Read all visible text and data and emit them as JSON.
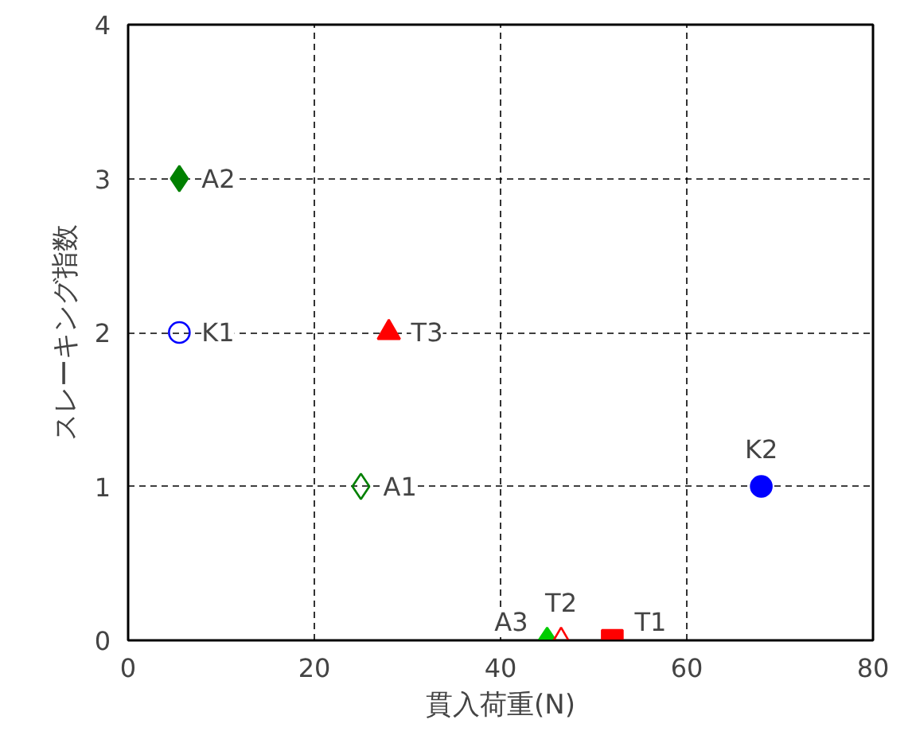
{
  "chart_data": {
    "type": "scatter",
    "xlabel": "貫入荷重(N)",
    "ylabel": "スレーキング指数",
    "xlim": [
      0,
      80
    ],
    "ylim": [
      0,
      4
    ],
    "xticks": [
      0,
      20,
      40,
      60,
      80
    ],
    "yticks": [
      0,
      1,
      2,
      3,
      4
    ],
    "grid": true,
    "legend": false,
    "series": [
      {
        "name": "A2",
        "color": "#008000",
        "marker": "diamond",
        "x": [
          5.5
        ],
        "values": [
          3
        ]
      },
      {
        "name": "K1",
        "color": "#0000ff",
        "marker": "circle",
        "x": [
          5.5
        ],
        "values": [
          2
        ]
      },
      {
        "name": "T3",
        "color": "#ff0000",
        "marker": "triangle",
        "x": [
          28
        ],
        "values": [
          2
        ]
      },
      {
        "name": "A1",
        "color": "#008000",
        "marker": "diamond",
        "x": [
          25
        ],
        "values": [
          1
        ]
      },
      {
        "name": "K2",
        "color": "#0000ff",
        "marker": "circle",
        "x": [
          68
        ],
        "values": [
          1
        ]
      },
      {
        "name": "A3",
        "color": "#00cc00",
        "marker": "diamond",
        "x": [
          45
        ],
        "values": [
          0
        ]
      },
      {
        "name": "T2",
        "color": "#ff0000",
        "marker": "triangle",
        "x": [
          46.5
        ],
        "values": [
          0
        ]
      },
      {
        "name": "T1",
        "color": "#ff0000",
        "marker": "square",
        "x": [
          52
        ],
        "values": [
          0
        ]
      }
    ]
  }
}
